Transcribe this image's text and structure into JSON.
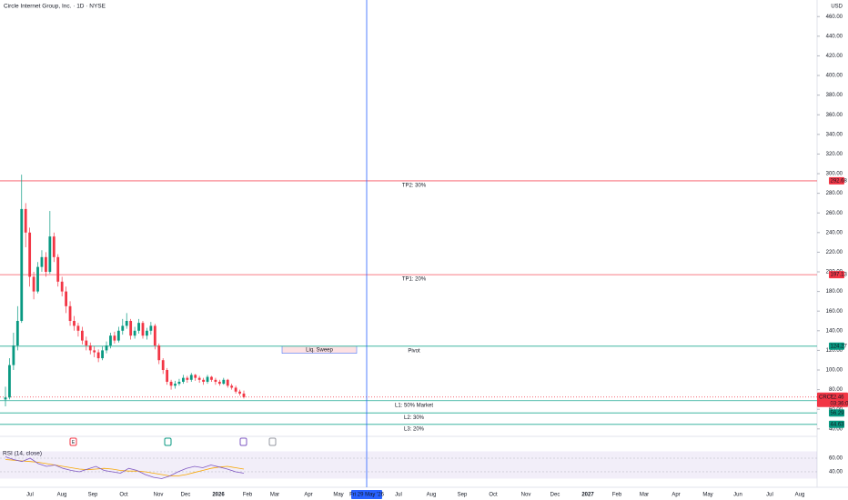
{
  "chart_data": {
    "type": "candlestick",
    "title": "Circle Internet Group, Inc. · 1D · NYSE",
    "currency": "USD",
    "ylim": [
      32.4,
      476.9
    ],
    "yticks": [
      {
        "value": 40,
        "label": "40.00"
      },
      {
        "value": 60,
        "label": "60.00"
      },
      {
        "value": 80,
        "label": "80.00"
      },
      {
        "value": 100,
        "label": "100.00"
      },
      {
        "value": 120,
        "label": "120.00"
      },
      {
        "value": 140,
        "label": "140.00"
      },
      {
        "value": 160,
        "label": "160.00"
      },
      {
        "value": 180,
        "label": "180.00"
      },
      {
        "value": 200,
        "label": "200.00"
      },
      {
        "value": 220,
        "label": "220.00"
      },
      {
        "value": 240,
        "label": "240.00"
      },
      {
        "value": 260,
        "label": "260.00"
      },
      {
        "value": 280,
        "label": "280.00"
      },
      {
        "value": 300,
        "label": "300.00"
      },
      {
        "value": 320,
        "label": "320.00"
      },
      {
        "value": 340,
        "label": "340.00"
      },
      {
        "value": 360,
        "label": "360.00"
      },
      {
        "value": 380,
        "label": "380.00"
      },
      {
        "value": 400,
        "label": "400.00"
      },
      {
        "value": 420,
        "label": "420.00"
      },
      {
        "value": 440,
        "label": "440.00"
      },
      {
        "value": 460,
        "label": "460.00"
      }
    ],
    "x_labels": [
      "Jul",
      "Aug",
      "Sep",
      "Oct",
      "Nov",
      "Dec",
      "2026",
      "Feb",
      "Mar",
      "Apr",
      "May",
      "Jul",
      "Aug",
      "Sep",
      "Oct",
      "Nov",
      "Dec",
      "2027",
      "Feb",
      "Mar",
      "Apr",
      "May",
      "Jun",
      "Jul",
      "Aug"
    ],
    "crosshair_label": "Fri 29 May '26",
    "up_color": "#089981",
    "down_color": "#f23645",
    "open": [
      70,
      72,
      105,
      125,
      150,
      264,
      240,
      195,
      180,
      205,
      215,
      200,
      236,
      215,
      190,
      180,
      165,
      150,
      145,
      140,
      130,
      125,
      120,
      118,
      112,
      120,
      125,
      135,
      130,
      140,
      145,
      150,
      135,
      140,
      148,
      135,
      140,
      145,
      125,
      110,
      100,
      88,
      84,
      86,
      88,
      92,
      90,
      95,
      92,
      90,
      88,
      93,
      90,
      88,
      86,
      90,
      84,
      82,
      78,
      76
    ],
    "high": [
      83,
      112,
      138,
      165,
      299,
      270,
      245,
      200,
      210,
      222,
      220,
      262,
      240,
      218,
      195,
      185,
      170,
      155,
      148,
      144,
      134,
      128,
      124,
      121,
      124,
      129,
      138,
      139,
      144,
      152,
      158,
      152,
      144,
      152,
      150,
      143,
      149,
      147,
      127,
      112,
      102,
      90,
      89,
      91,
      95,
      94,
      97,
      96,
      94,
      92,
      95,
      94,
      92,
      90,
      92,
      91,
      86,
      84,
      80,
      79
    ],
    "low": [
      63,
      70,
      100,
      120,
      148,
      225,
      185,
      172,
      178,
      200,
      195,
      198,
      210,
      185,
      175,
      158,
      145,
      140,
      134,
      126,
      120,
      116,
      113,
      108,
      110,
      117,
      122,
      127,
      128,
      136,
      142,
      131,
      132,
      137,
      132,
      131,
      136,
      121,
      106,
      96,
      85,
      80,
      81,
      84,
      86,
      87,
      88,
      89,
      87,
      85,
      86,
      88,
      85,
      84,
      85,
      82,
      80,
      76,
      74,
      71
    ],
    "close": [
      72,
      105,
      125,
      150,
      264,
      240,
      195,
      180,
      205,
      215,
      200,
      236,
      215,
      190,
      180,
      165,
      150,
      145,
      140,
      130,
      125,
      120,
      118,
      112,
      120,
      125,
      135,
      130,
      140,
      145,
      150,
      135,
      140,
      148,
      135,
      140,
      145,
      125,
      110,
      100,
      88,
      84,
      86,
      88,
      92,
      90,
      95,
      92,
      90,
      88,
      93,
      90,
      88,
      86,
      90,
      84,
      82,
      78,
      76,
      72.46
    ],
    "levels": [
      {
        "name": "TP2: 30%",
        "value": 292.68,
        "value_label": "292.68",
        "color": "#f7525f"
      },
      {
        "name": "TP1: 20%",
        "value": 197.13,
        "value_label": "197.13",
        "color": "#f7525f"
      },
      {
        "name": "Pivot",
        "value": 124.27,
        "value_label": "124.27",
        "color": "#22ab94"
      },
      {
        "name": "L1: 50% Market",
        "value": 68.78,
        "value_label": "68.78",
        "color": "#22ab94"
      },
      {
        "name": "L2: 30%",
        "value": 56.29,
        "value_label": "56.29",
        "color": "#22ab94"
      },
      {
        "name": "L3: 20%",
        "value": 44.63,
        "value_label": "44.63",
        "color": "#22ab94"
      }
    ],
    "last_price": {
      "symbol": "CRCL",
      "value": 72.46,
      "value_label": "72.46",
      "countdown": "03:36:06",
      "color": "#f23645"
    },
    "zone": {
      "label": "Liq. Sweep",
      "top": 124.27,
      "bottom": 117
    },
    "events": [
      "E"
    ],
    "rsi": {
      "title": "RSI (14, close)",
      "ylim": [
        25.3,
        72
      ],
      "yticks": [
        {
          "value": 40,
          "label": "40.00"
        },
        {
          "value": 60,
          "label": "60.00"
        }
      ],
      "band": [
        30,
        70
      ],
      "color": "#7e57c2",
      "ma_color": "#f7a600",
      "values": [
        62,
        58,
        55,
        60,
        52,
        48,
        50,
        45,
        42,
        40,
        44,
        48,
        42,
        40,
        38,
        45,
        42,
        36,
        32,
        30,
        34,
        40,
        45,
        48,
        46,
        50,
        47,
        44,
        40,
        38
      ],
      "ma": [
        58,
        57,
        56,
        55,
        54,
        52,
        50,
        48,
        46,
        44,
        43,
        44,
        45,
        44,
        42,
        41,
        41,
        40,
        38,
        36,
        34,
        34,
        36,
        39,
        42,
        45,
        47,
        48,
        46,
        44
      ]
    }
  }
}
